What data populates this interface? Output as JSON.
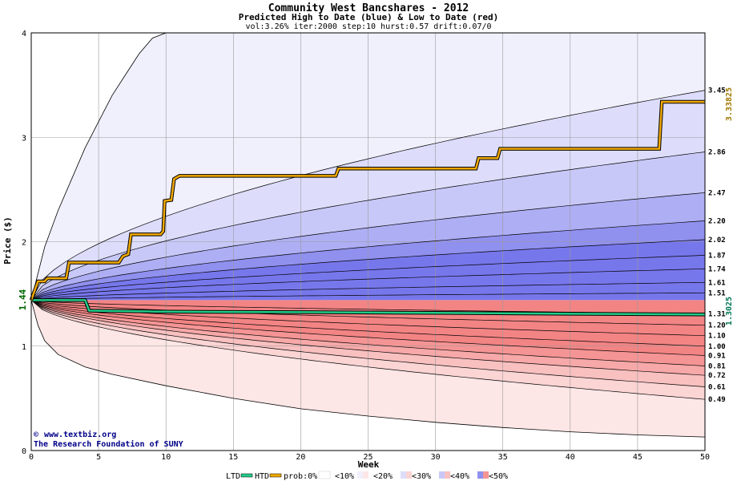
{
  "chart_data": {
    "type": "area",
    "title": "Community West Bancshares - 2012",
    "subtitle": "Predicted High to Date (blue) &  Low to Date (red)",
    "params": "vol:3.26% iter:2000 step:10 hurst:0.57 drift:0.07/0",
    "xlabel": "Week",
    "ylabel": "Price ($)",
    "xlim": [
      0,
      50
    ],
    "ylim": [
      0,
      4
    ],
    "x_ticks": [
      0,
      5,
      10,
      15,
      20,
      25,
      30,
      35,
      40,
      45,
      50
    ],
    "y_ticks": [
      0,
      1,
      2,
      3,
      4
    ],
    "grid": true,
    "start_price": 1.44,
    "start_label": "1.44",
    "htd_end": 3.33825,
    "htd_end_label": "3.33825",
    "ltd_end": 1.3025,
    "ltd_end_label": "1.3025",
    "high_quantile_levels": [
      {
        "value": 3.45,
        "label": "3.45"
      },
      {
        "value": 2.86,
        "label": "2.86"
      },
      {
        "value": 2.47,
        "label": "2.47"
      },
      {
        "value": 2.2,
        "label": "2.20"
      },
      {
        "value": 2.02,
        "label": "2.02"
      },
      {
        "value": 1.87,
        "label": "1.87"
      },
      {
        "value": 1.74,
        "label": "1.74"
      },
      {
        "value": 1.61,
        "label": "1.61"
      },
      {
        "value": 1.51,
        "label": "1.51"
      }
    ],
    "low_quantile_levels": [
      {
        "value": 1.31,
        "label": "1.31"
      },
      {
        "value": 1.2,
        "label": "1.20"
      },
      {
        "value": 1.1,
        "label": "1.10"
      },
      {
        "value": 1.0,
        "label": "1.00"
      },
      {
        "value": 0.91,
        "label": "0.91"
      },
      {
        "value": 0.81,
        "label": "0.81"
      },
      {
        "value": 0.72,
        "label": "0.72"
      },
      {
        "value": 0.61,
        "label": "0.61"
      },
      {
        "value": 0.49,
        "label": "0.49"
      }
    ],
    "outer_high_envelope": [
      [
        0,
        1.44
      ],
      [
        1,
        1.95
      ],
      [
        2,
        2.3
      ],
      [
        3,
        2.6
      ],
      [
        4,
        2.9
      ],
      [
        5,
        3.15
      ],
      [
        6,
        3.4
      ],
      [
        7,
        3.6
      ],
      [
        8,
        3.8
      ],
      [
        9,
        3.95
      ],
      [
        10,
        4.05
      ]
    ],
    "outer_low_envelope": [
      [
        0,
        1.44
      ],
      [
        0.5,
        1.2
      ],
      [
        1,
        1.05
      ],
      [
        2,
        0.92
      ],
      [
        4,
        0.8
      ],
      [
        6,
        0.73
      ],
      [
        10,
        0.62
      ],
      [
        15,
        0.5
      ],
      [
        20,
        0.4
      ],
      [
        25,
        0.33
      ],
      [
        30,
        0.27
      ],
      [
        35,
        0.22
      ],
      [
        40,
        0.18
      ],
      [
        45,
        0.15
      ],
      [
        50,
        0.13
      ]
    ],
    "htd_series": [
      [
        0,
        1.44
      ],
      [
        0.5,
        1.62
      ],
      [
        1,
        1.62
      ],
      [
        1.2,
        1.65
      ],
      [
        2.6,
        1.65
      ],
      [
        2.8,
        1.8
      ],
      [
        6.5,
        1.8
      ],
      [
        6.8,
        1.86
      ],
      [
        7.2,
        1.88
      ],
      [
        7.4,
        2.07
      ],
      [
        9.6,
        2.07
      ],
      [
        9.8,
        2.1
      ],
      [
        9.9,
        2.39
      ],
      [
        10.4,
        2.4
      ],
      [
        10.6,
        2.6
      ],
      [
        11,
        2.63
      ],
      [
        22.6,
        2.63
      ],
      [
        22.8,
        2.7
      ],
      [
        33,
        2.7
      ],
      [
        33.2,
        2.8
      ],
      [
        34.6,
        2.8
      ],
      [
        34.8,
        2.89
      ],
      [
        46.6,
        2.89
      ],
      [
        46.8,
        3.34
      ],
      [
        50,
        3.34
      ]
    ],
    "ltd_series": [
      [
        0,
        1.44
      ],
      [
        4,
        1.44
      ],
      [
        4.3,
        1.34
      ],
      [
        10,
        1.33
      ],
      [
        20,
        1.325
      ],
      [
        30,
        1.318
      ],
      [
        40,
        1.31
      ],
      [
        50,
        1.3025
      ]
    ],
    "band_labels": [
      "prob:0%",
      "<10%",
      "<20%",
      "<30%",
      "<40%",
      "<50%"
    ],
    "band_colors_high": [
      "#ffffff",
      "#f0f0fd",
      "#ddddfb",
      "#c8c8f8",
      "#aeaef4",
      "#9090ef",
      "#7777ec"
    ],
    "band_colors_low": [
      "#ffffff",
      "#fde6e6",
      "#fbd4d4",
      "#f9c0c0",
      "#f7a8a8",
      "#f59494",
      "#f38484"
    ],
    "colors": {
      "htd": "#f0a800",
      "ltd": "#22cc88",
      "start_label": "#006600",
      "htd_label": "#a07800",
      "ltd_label": "#007755",
      "credit": "#000088"
    }
  },
  "legend": {
    "ltd": "LTD",
    "htd": "HTD",
    "prob": "prob:0%",
    "p10": "<10%",
    "p20": "<20%",
    "p30": "<30%",
    "p40": "<40%",
    "p50": "<50%"
  },
  "credit": {
    "site": "www.textbiz.org",
    "org": "The Research Foundation of SUNY",
    "copyright_symbol": "©"
  }
}
